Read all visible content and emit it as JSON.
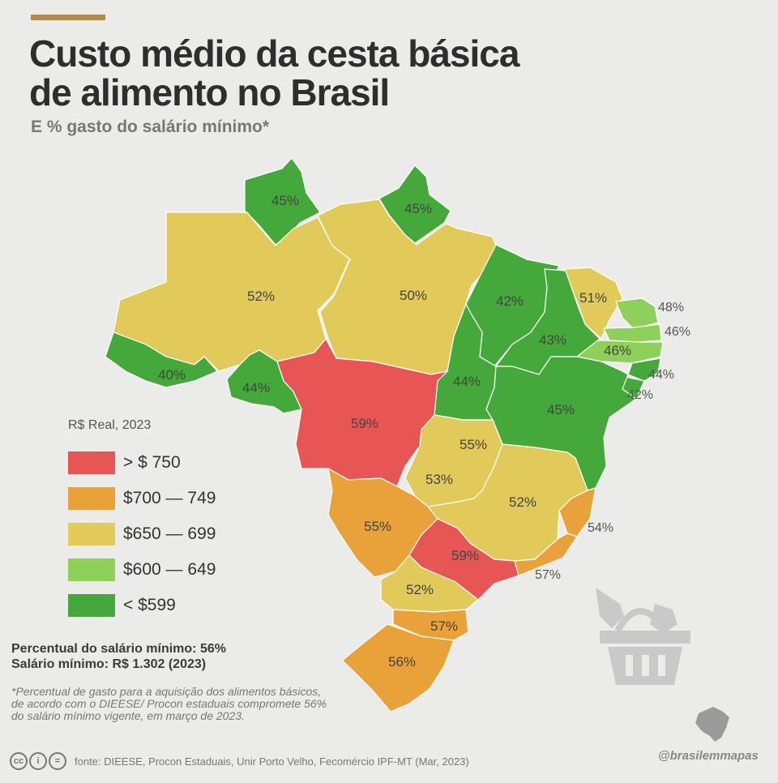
{
  "title": "Custo médio da cesta básica de alimento no Brasil",
  "subtitle": "E % gasto do salário mínimo*",
  "legend": {
    "title": "R$ Real, 2023",
    "items": [
      {
        "label": "> $ 750",
        "color": "#e85555"
      },
      {
        "label": "$700 — 749",
        "color": "#e9a23a"
      },
      {
        "label": "$650 — 699",
        "color": "#e1c95a"
      },
      {
        "label": "$600 — 649",
        "color": "#8ed05a"
      },
      {
        "label": "< $599",
        "color": "#45a83a"
      }
    ]
  },
  "regions": [
    {
      "state": "RR",
      "pct": "45%",
      "color": "#45a83a"
    },
    {
      "state": "AP",
      "pct": "45%",
      "color": "#45a83a"
    },
    {
      "state": "AM",
      "pct": "52%",
      "color": "#e1c95a"
    },
    {
      "state": "PA",
      "pct": "50%",
      "color": "#e1c95a"
    },
    {
      "state": "MA",
      "pct": "42%",
      "color": "#45a83a"
    },
    {
      "state": "CE",
      "pct": "51%",
      "color": "#e1c95a"
    },
    {
      "state": "RN",
      "pct": "48%",
      "color": "#8ed05a"
    },
    {
      "state": "PB",
      "pct": "46%",
      "color": "#8ed05a"
    },
    {
      "state": "PE",
      "pct": "46%",
      "color": "#8ed05a"
    },
    {
      "state": "PI",
      "pct": "43%",
      "color": "#45a83a"
    },
    {
      "state": "AL",
      "pct": "44%",
      "color": "#45a83a"
    },
    {
      "state": "SE",
      "pct": "42%",
      "color": "#45a83a"
    },
    {
      "state": "AC",
      "pct": "40%",
      "color": "#45a83a"
    },
    {
      "state": "RO",
      "pct": "44%",
      "color": "#45a83a"
    },
    {
      "state": "TO",
      "pct": "44%",
      "color": "#45a83a"
    },
    {
      "state": "BA",
      "pct": "45%",
      "color": "#45a83a"
    },
    {
      "state": "MT",
      "pct": "59%",
      "color": "#e85555"
    },
    {
      "state": "DF",
      "pct": "55%",
      "color": "#e9a23a"
    },
    {
      "state": "GO",
      "pct": "53%",
      "color": "#e1c95a"
    },
    {
      "state": "MG",
      "pct": "52%",
      "color": "#e1c95a"
    },
    {
      "state": "ES",
      "pct": "54%",
      "color": "#e9a23a"
    },
    {
      "state": "MS",
      "pct": "55%",
      "color": "#e9a23a"
    },
    {
      "state": "SP",
      "pct": "59%",
      "color": "#e85555"
    },
    {
      "state": "RJ",
      "pct": "57%",
      "color": "#e9a23a"
    },
    {
      "state": "PR",
      "pct": "52%",
      "color": "#e1c95a"
    },
    {
      "state": "SC",
      "pct": "57%",
      "color": "#e9a23a"
    },
    {
      "state": "RS",
      "pct": "56%",
      "color": "#e9a23a"
    }
  ],
  "stats": {
    "line1": "Percentual do salário mínimo: 56%",
    "line2": "Salário mínimo: R$ 1.302 (2023)"
  },
  "footnote": "*Percentual de gasto para a aquisição dos alimentos básicos, de acordo com o DIEESE/ Procon estaduais compromete 56% do salário mínimo vigente, em março de 2023.",
  "source": "fonte: DIEESE, Procon Estaduais, Unir Porto Velho, Fecomércio IPF-MT  (Mar, 2023)",
  "handle": "@brasilemmapas",
  "icons": {
    "cc": "cc",
    "by": "i",
    "nd": "="
  }
}
